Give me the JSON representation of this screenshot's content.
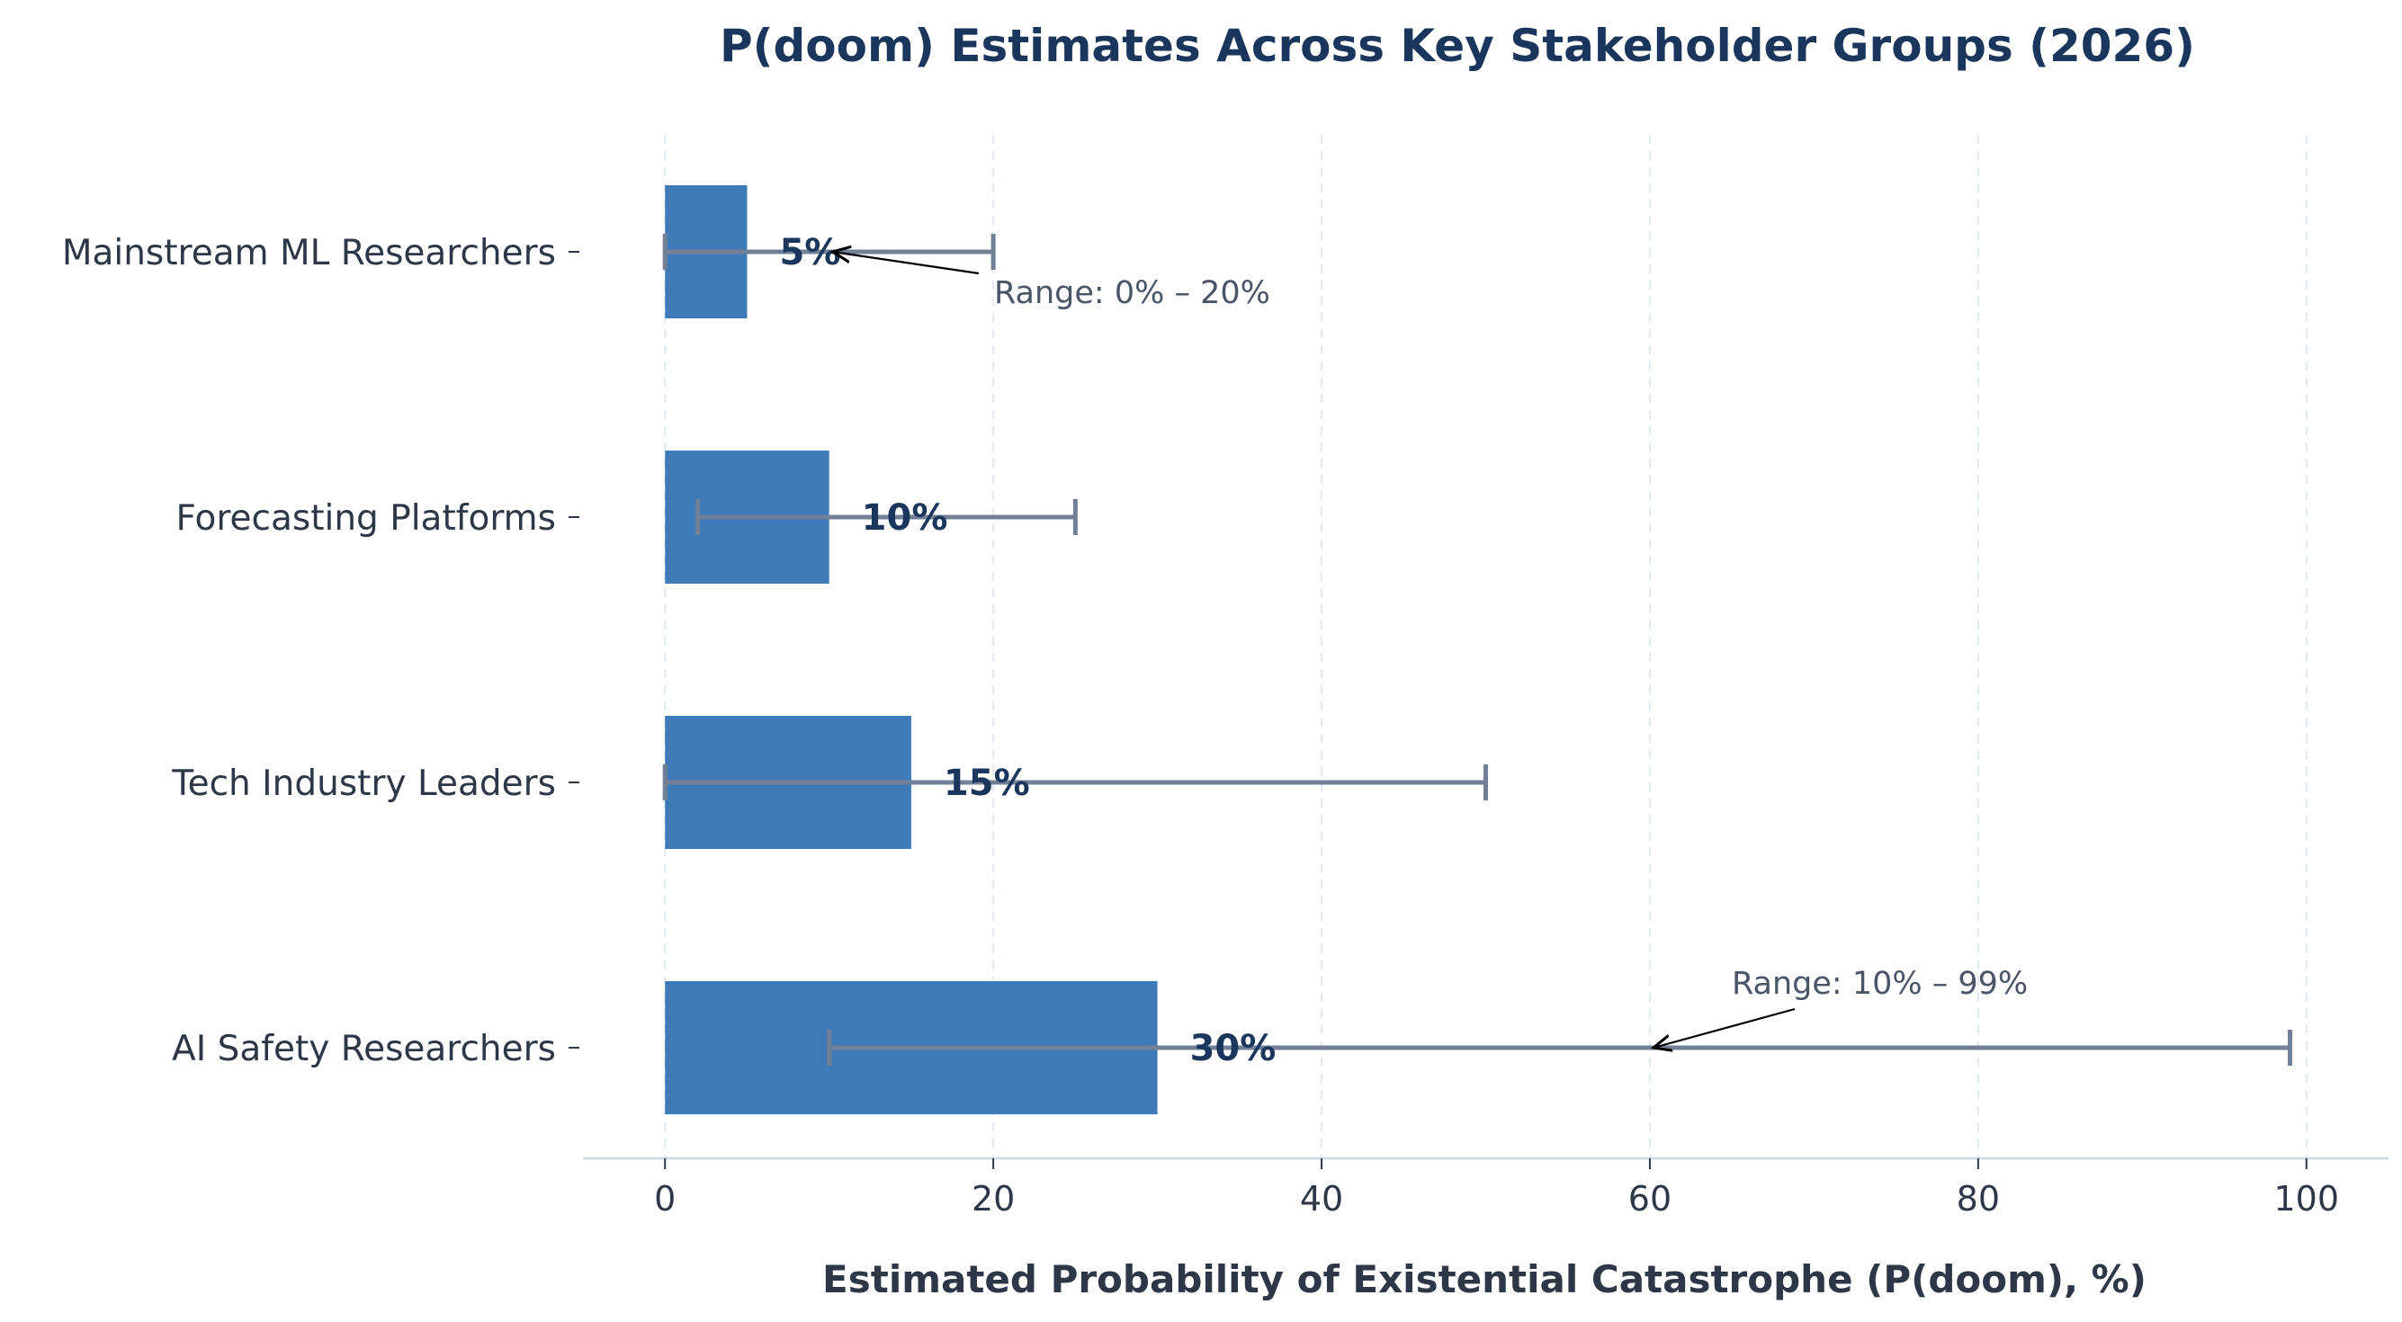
{
  "chart_data": {
    "type": "bar",
    "orientation": "horizontal",
    "title": "P(doom) Estimates Across Key Stakeholder Groups (2026)",
    "xlabel": "Estimated Probability of Existential Catastrophe (P(doom), %)",
    "ylabel": "",
    "xlim": [
      -5,
      105
    ],
    "xticks": [
      0,
      20,
      40,
      60,
      80,
      100
    ],
    "grid": "vertical dashed",
    "categories": [
      "Mainstream ML Researchers",
      "Forecasting Platforms",
      "Tech Industry Leaders",
      "AI Safety Researchers"
    ],
    "values": [
      5,
      10,
      15,
      30
    ],
    "data_labels": [
      "5%",
      "10%",
      "15%",
      "30%"
    ],
    "range_low": [
      0,
      2,
      0,
      10
    ],
    "range_high": [
      20,
      25,
      50,
      99
    ],
    "annotations": [
      {
        "text": "Range: 0% – 20%",
        "category": "Mainstream ML Researchers",
        "points_to_x": 10
      },
      {
        "text": "Range: 10% – 99%",
        "category": "AI Safety Researchers",
        "points_to_x": 60
      }
    ],
    "colors": {
      "bar": "#3f7ab8",
      "errorbar": "#718096",
      "title": "#1a365d",
      "data_label": "#1a365d",
      "axis_text": "#2d3748",
      "annotation": "#4a5568",
      "grid": "#e2e8f0",
      "axis_line": "#cbd5e0"
    }
  }
}
